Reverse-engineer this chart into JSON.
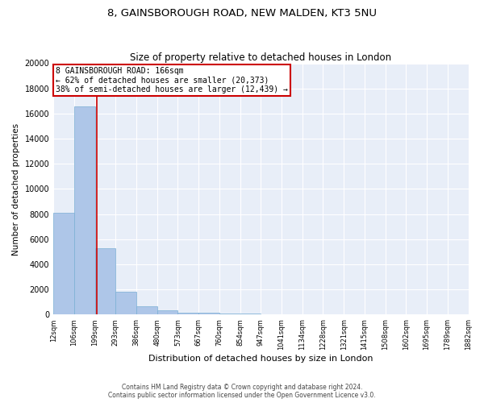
{
  "title1": "8, GAINSBOROUGH ROAD, NEW MALDEN, KT3 5NU",
  "title2": "Size of property relative to detached houses in London",
  "xlabel": "Distribution of detached houses by size in London",
  "ylabel": "Number of detached properties",
  "bar_values": [
    8100,
    16600,
    5300,
    1800,
    650,
    320,
    175,
    150,
    125,
    80,
    60,
    50,
    40,
    30,
    20,
    15,
    10,
    8,
    5,
    3
  ],
  "x_labels": [
    "12sqm",
    "106sqm",
    "199sqm",
    "293sqm",
    "386sqm",
    "480sqm",
    "573sqm",
    "667sqm",
    "760sqm",
    "854sqm",
    "947sqm",
    "1041sqm",
    "1134sqm",
    "1228sqm",
    "1321sqm",
    "1415sqm",
    "1508sqm",
    "1602sqm",
    "1695sqm",
    "1789sqm",
    "1882sqm"
  ],
  "bar_color": "#aec6e8",
  "bar_edge_color": "#7aafd4",
  "annotation_text": "8 GAINSBOROUGH ROAD: 166sqm\n← 62% of detached houses are smaller (20,373)\n38% of semi-detached houses are larger (12,439) →",
  "annotation_box_color": "#cc0000",
  "vline_color": "#cc0000",
  "ylim": [
    0,
    20000
  ],
  "yticks": [
    0,
    2000,
    4000,
    6000,
    8000,
    10000,
    12000,
    14000,
    16000,
    18000,
    20000
  ],
  "footer_line1": "Contains HM Land Registry data © Crown copyright and database right 2024.",
  "footer_line2": "Contains public sector information licensed under the Open Government Licence v3.0.",
  "bg_color": "#e8eef8",
  "grid_color": "#ffffff",
  "title1_fontsize": 9.5,
  "title2_fontsize": 8.5
}
